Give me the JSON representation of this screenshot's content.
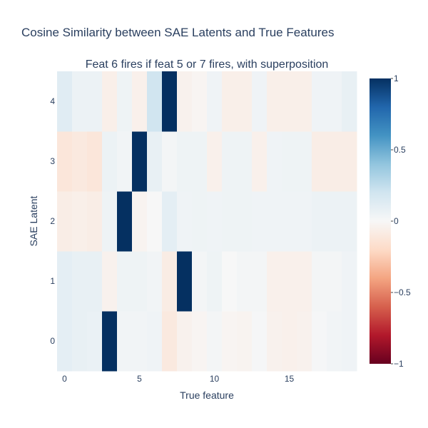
{
  "chart_data": {
    "type": "heatmap",
    "title": "Cosine Similarity between SAE Latents and True Features",
    "subtitle": "Feat 6 fires if feat 5 or 7 fires, with superposition",
    "xlabel": "True feature",
    "ylabel": "SAE Latent",
    "x": [
      0,
      1,
      2,
      3,
      4,
      5,
      6,
      7,
      8,
      9,
      10,
      11,
      12,
      13,
      14,
      15,
      16,
      17,
      18,
      19
    ],
    "y": [
      0,
      1,
      2,
      3,
      4
    ],
    "x_ticks": [
      0,
      5,
      10,
      15
    ],
    "y_ticks": [
      0,
      1,
      2,
      3,
      4
    ],
    "x_tick_labels": [
      "0",
      "5",
      "10",
      "15"
    ],
    "y_tick_labels": [
      "0",
      "1",
      "2",
      "3",
      "4"
    ],
    "z": [
      [
        0.1,
        0.08,
        0.07,
        1.0,
        0.03,
        0.03,
        0.04,
        -0.1,
        -0.04,
        -0.02,
        0.02,
        -0.02,
        -0.03,
        0.01,
        -0.04,
        -0.05,
        -0.04,
        0.01,
        0.03,
        0.04
      ],
      [
        0.1,
        0.08,
        0.08,
        -0.04,
        0.05,
        0.05,
        0.03,
        -0.08,
        1.0,
        0.02,
        0.05,
        0.0,
        0.02,
        0.02,
        -0.05,
        -0.05,
        -0.05,
        0.02,
        0.02,
        0.04
      ],
      [
        -0.07,
        -0.06,
        -0.07,
        0.05,
        1.0,
        -0.03,
        0.0,
        0.1,
        0.04,
        0.05,
        0.04,
        0.05,
        0.05,
        0.04,
        0.04,
        0.04,
        0.04,
        0.06,
        0.06,
        0.06
      ],
      [
        -0.12,
        -0.1,
        -0.12,
        0.06,
        0.03,
        1.0,
        0.08,
        0.02,
        0.05,
        0.05,
        -0.05,
        0.05,
        0.05,
        -0.05,
        0.04,
        0.05,
        0.05,
        -0.07,
        -0.07,
        -0.07
      ],
      [
        0.12,
        0.06,
        0.06,
        -0.06,
        0.05,
        -0.05,
        0.2,
        1.0,
        -0.04,
        -0.02,
        0.04,
        -0.06,
        -0.06,
        0.04,
        -0.06,
        -0.06,
        -0.06,
        0.04,
        0.04,
        0.08
      ]
    ],
    "zmin": -1,
    "zmax": 1,
    "colorscale": [
      "#67001f",
      "#b2182b",
      "#d6604d",
      "#f4a582",
      "#fddbc7",
      "#f7f7f7",
      "#d1e5f0",
      "#92c5de",
      "#4393c3",
      "#2166ac",
      "#053061"
    ],
    "colorbar": {
      "tick_values": [
        1,
        0.5,
        0,
        -0.5,
        -1
      ],
      "tick_labels": [
        "1",
        "0.5",
        "0",
        "−0.5",
        "−1"
      ]
    },
    "grid": false,
    "legend": "colorbar-right"
  }
}
